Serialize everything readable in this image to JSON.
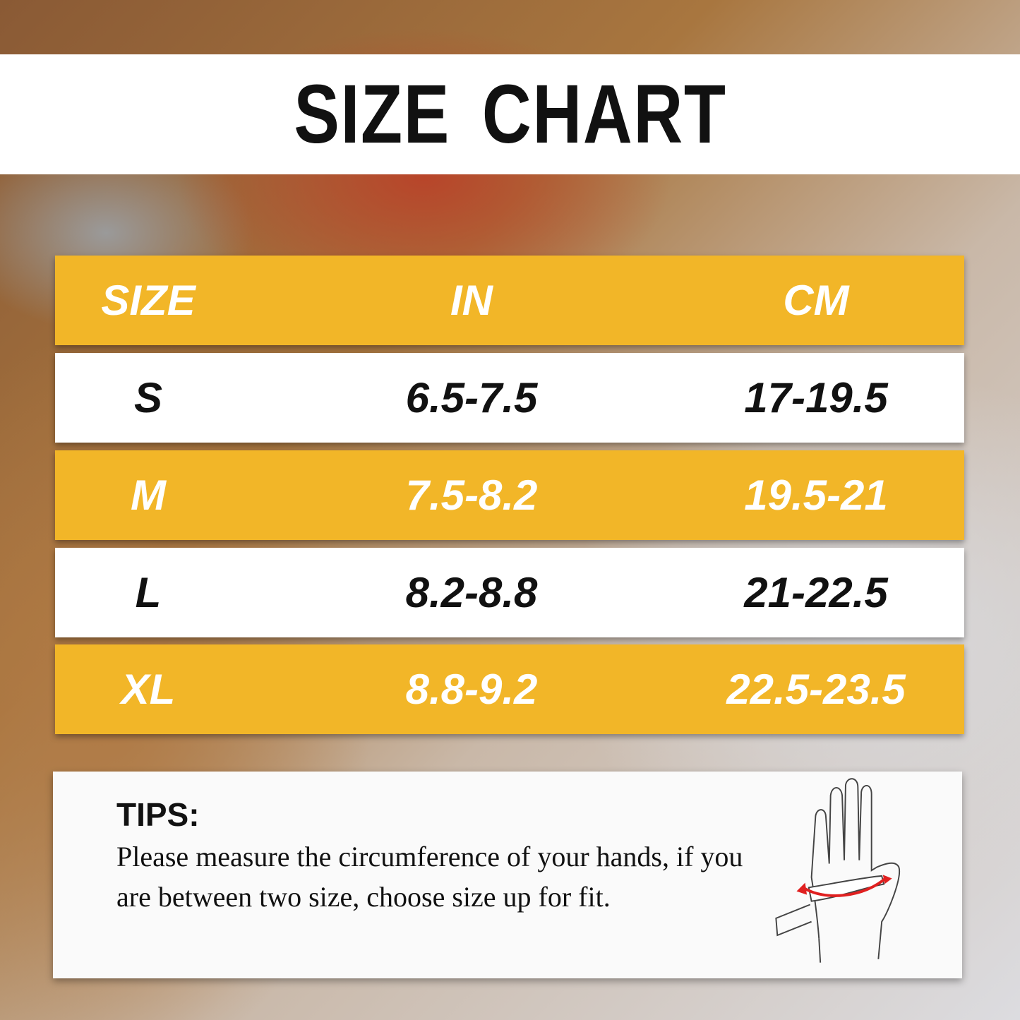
{
  "title": "SIZE CHART",
  "table": {
    "headers": [
      "SIZE",
      "IN",
      "CM"
    ],
    "rows": [
      [
        "S",
        "6.5-7.5",
        "17-19.5"
      ],
      [
        "M",
        "7.5-8.2",
        "19.5-21"
      ],
      [
        "L",
        "8.2-8.8",
        "21-22.5"
      ],
      [
        "XL",
        "8.8-9.2",
        "22.5-23.5"
      ]
    ]
  },
  "tips": {
    "heading": "TIPS:",
    "body": "Please measure the circumference of your hands, if you are between two size, choose size up for fit."
  },
  "colors": {
    "accent": "#f2b628",
    "white": "#ffffff",
    "text": "#111111"
  },
  "icons": [
    "hand-measurement-icon"
  ]
}
